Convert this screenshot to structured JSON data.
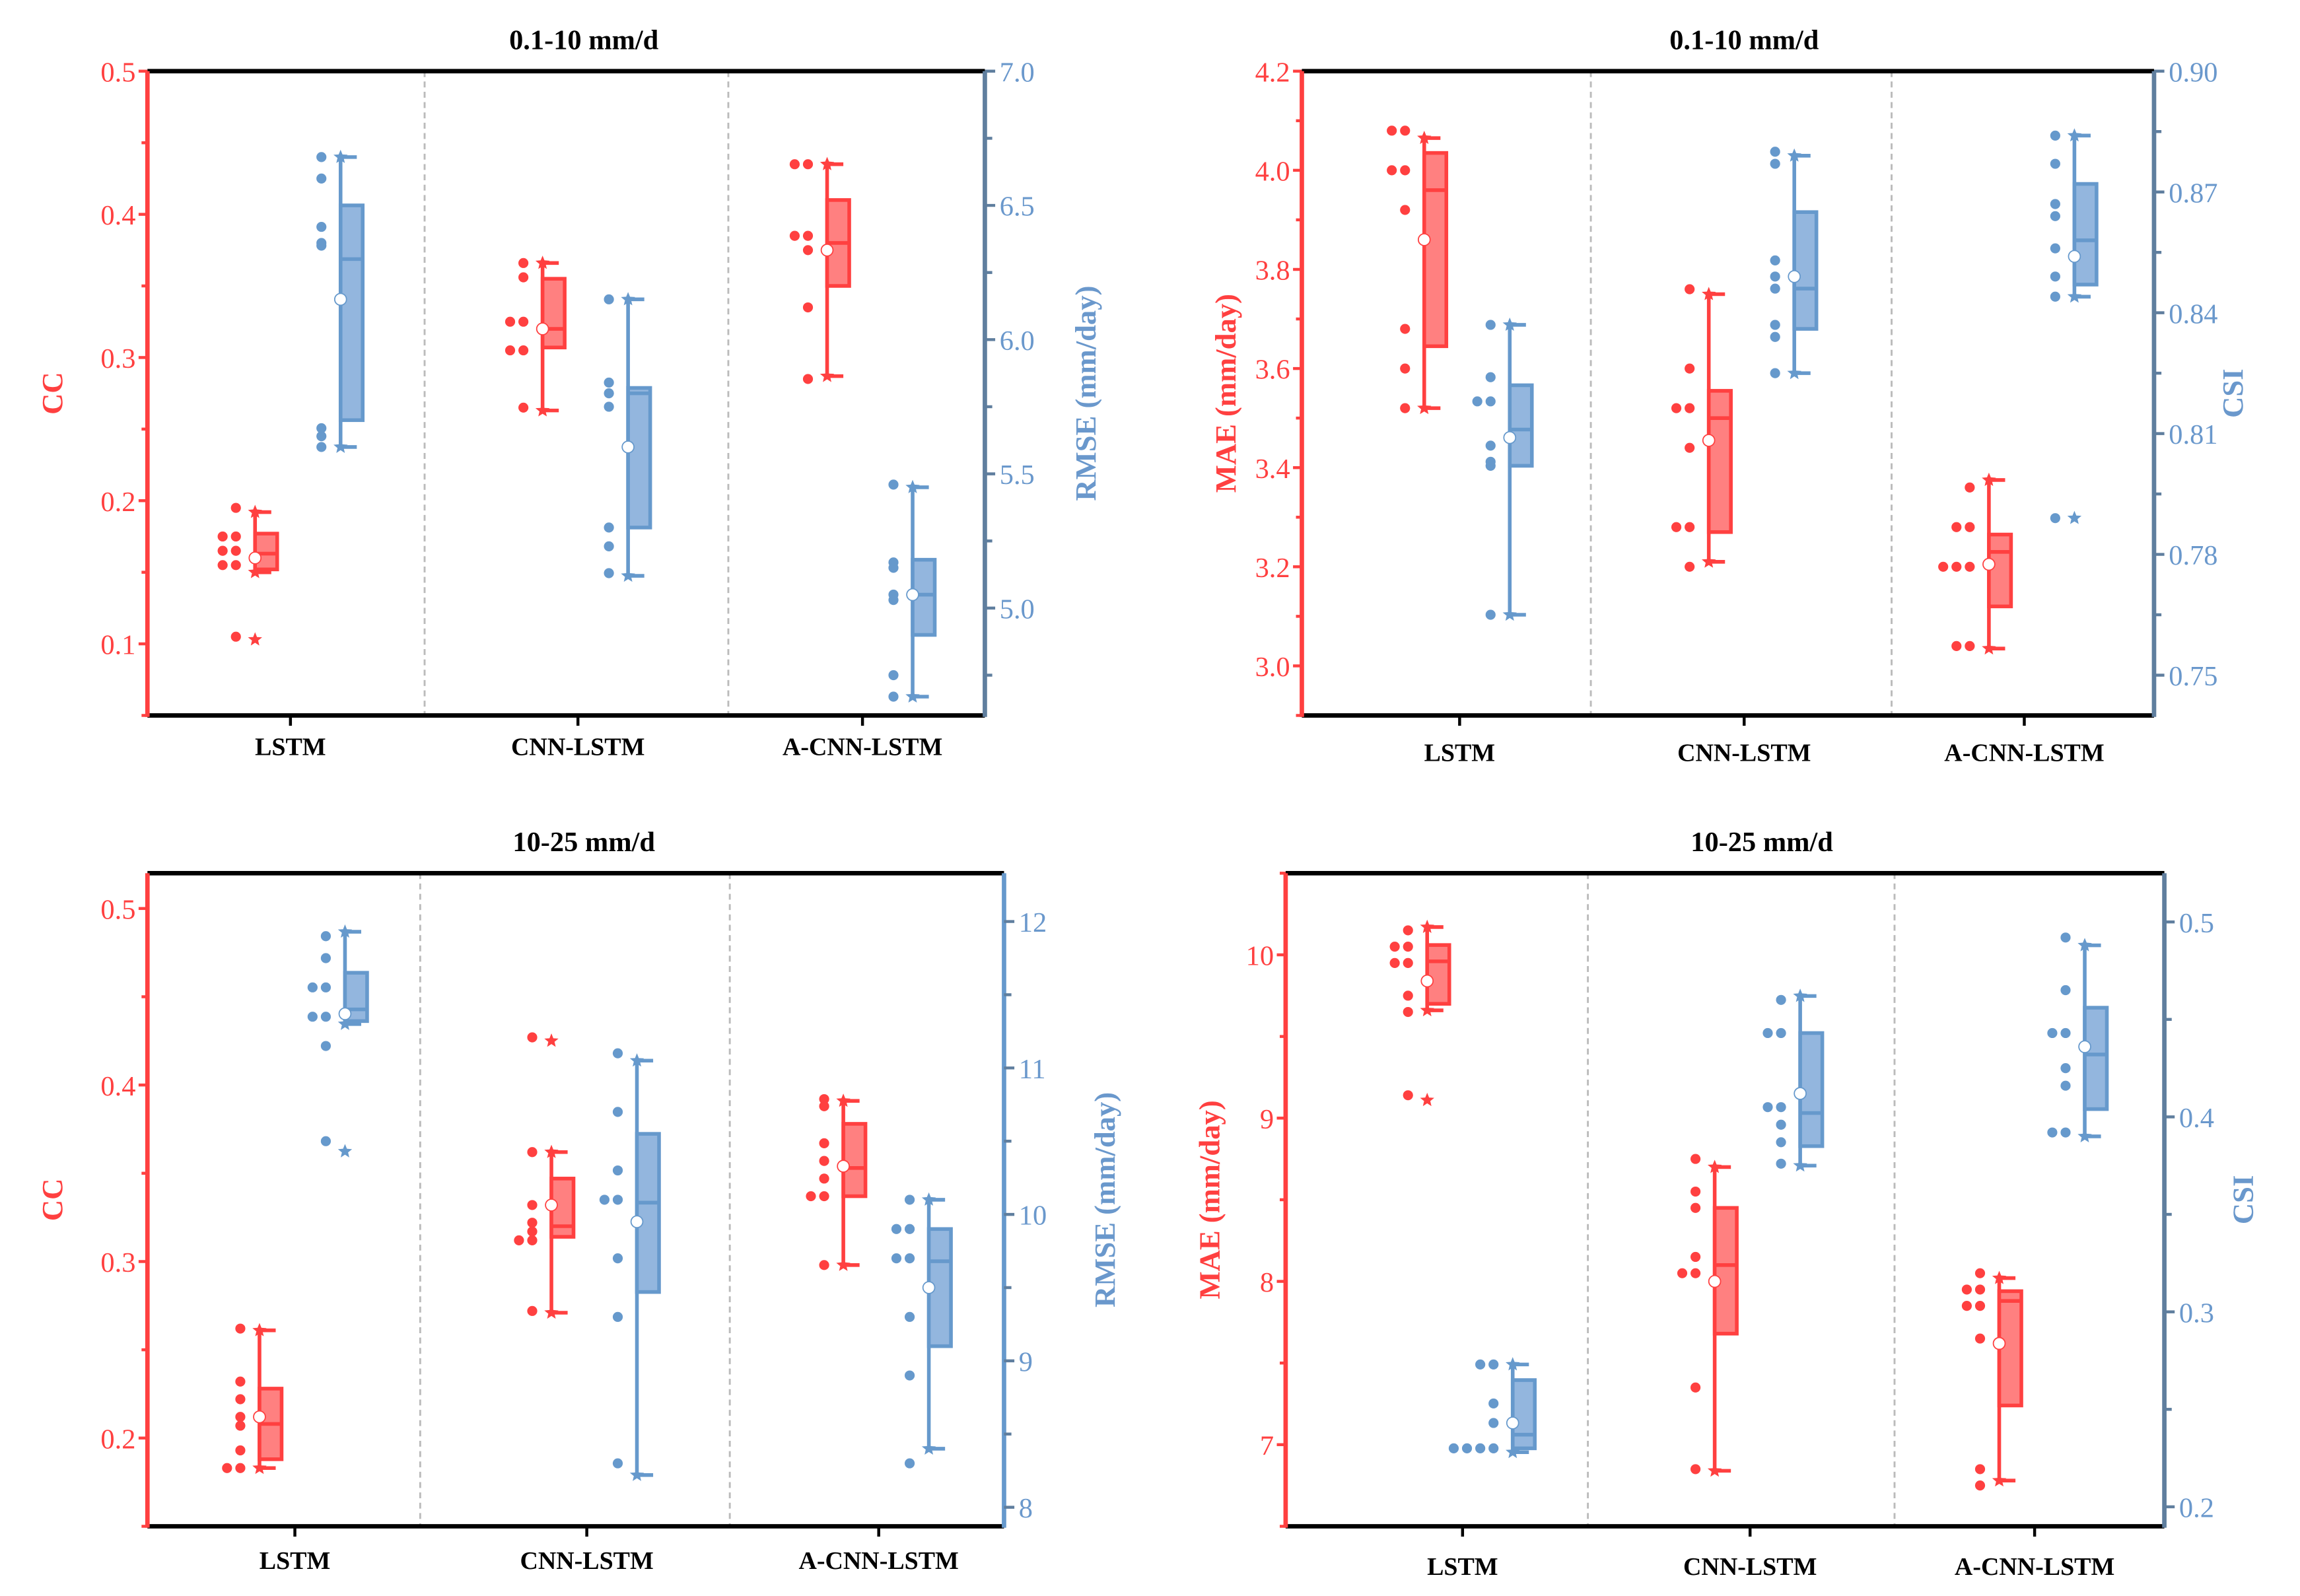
{
  "colors": {
    "left": "#FF4040",
    "left_fill": "#FF8080",
    "right": "#6699CC",
    "right_fill": "#93B6DE",
    "right_axis": "#5F7E9E",
    "divider": "#BBBBBB"
  },
  "chart_data": [
    {
      "type": "box",
      "title": "0.1-10 mm/d",
      "categories": [
        "LSTM",
        "CNN-LSTM",
        "A-CNN-LSTM"
      ],
      "left_axis": {
        "label": "CC",
        "range": [
          0.05,
          0.5
        ],
        "ticks": [
          {
            "v": 0.1,
            "label": "0.1"
          },
          {
            "v": 0.2,
            "label": "0.2"
          },
          {
            "v": 0.3,
            "label": "0.3"
          },
          {
            "v": 0.4,
            "label": "0.4"
          },
          {
            "v": 0.5,
            "label": "0.5"
          }
        ],
        "minor": [
          0.05,
          0.15,
          0.25,
          0.35,
          0.45
        ]
      },
      "right_axis": {
        "label": "RMSE (mm/day)",
        "range": [
          4.6,
          7.0
        ],
        "ticks": [
          {
            "v": 5.0,
            "label": "5.0"
          },
          {
            "v": 5.5,
            "label": "5.5"
          },
          {
            "v": 6.0,
            "label": "6.0"
          },
          {
            "v": 6.5,
            "label": "6.5"
          },
          {
            "v": 7.0,
            "label": "7.0"
          }
        ],
        "minor": [
          4.75,
          5.25,
          5.75,
          6.25,
          6.75
        ]
      },
      "left_series": [
        {
          "min": 0.15,
          "q1": 0.152,
          "median": 0.163,
          "q3": 0.177,
          "max": 0.192,
          "mean": 0.16,
          "points": [
            0.195,
            0.175,
            0.175,
            0.165,
            0.165,
            0.155,
            0.155,
            0.105
          ],
          "outliers": [
            0.103
          ]
        },
        {
          "min": 0.263,
          "q1": 0.307,
          "median": 0.32,
          "q3": 0.355,
          "max": 0.366,
          "mean": 0.32,
          "points": [
            0.366,
            0.356,
            0.325,
            0.325,
            0.305,
            0.305,
            0.265
          ],
          "outliers": []
        },
        {
          "min": 0.287,
          "q1": 0.35,
          "median": 0.38,
          "q3": 0.41,
          "max": 0.435,
          "mean": 0.375,
          "points": [
            0.435,
            0.435,
            0.385,
            0.385,
            0.375,
            0.335,
            0.285
          ],
          "outliers": []
        }
      ],
      "right_series": [
        {
          "min": 5.6,
          "q1": 5.7,
          "median": 6.3,
          "q3": 6.5,
          "max": 6.68,
          "mean": 6.15,
          "points": [
            6.68,
            6.6,
            6.42,
            6.35,
            6.36,
            5.67,
            5.64,
            5.6
          ],
          "outliers": []
        },
        {
          "min": 5.12,
          "q1": 5.3,
          "median": 5.8,
          "q3": 5.82,
          "max": 6.15,
          "mean": 5.6,
          "points": [
            6.15,
            5.84,
            5.8,
            5.75,
            5.3,
            5.23,
            5.13
          ],
          "outliers": []
        },
        {
          "min": 4.67,
          "q1": 4.9,
          "median": 5.05,
          "q3": 5.18,
          "max": 5.45,
          "mean": 5.05,
          "points": [
            5.46,
            5.17,
            5.15,
            5.05,
            5.03,
            4.75,
            4.67
          ],
          "outliers": []
        }
      ]
    },
    {
      "type": "box",
      "title": "0.1-10 mm/d",
      "categories": [
        "LSTM",
        "CNN-LSTM",
        "A-CNN-LSTM"
      ],
      "left_axis": {
        "label": "MAE (mm/day)",
        "range": [
          2.9,
          4.2
        ],
        "ticks": [
          {
            "v": 3.0,
            "label": "3.0"
          },
          {
            "v": 3.2,
            "label": "3.2"
          },
          {
            "v": 3.4,
            "label": "3.4"
          },
          {
            "v": 3.6,
            "label": "3.6"
          },
          {
            "v": 3.8,
            "label": "3.8"
          },
          {
            "v": 4.0,
            "label": "4.0"
          },
          {
            "v": 4.2,
            "label": "4.2"
          }
        ],
        "minor": [
          2.9,
          3.1,
          3.3,
          3.5,
          3.7,
          3.9,
          4.1
        ]
      },
      "right_axis": {
        "label": "CSI",
        "range": [
          0.74,
          0.9
        ],
        "ticks": [
          {
            "v": 0.75,
            "label": "0.75"
          },
          {
            "v": 0.78,
            "label": "0.78"
          },
          {
            "v": 0.81,
            "label": "0.81"
          },
          {
            "v": 0.84,
            "label": "0.84"
          },
          {
            "v": 0.87,
            "label": "0.87"
          },
          {
            "v": 0.9,
            "label": "0.90"
          }
        ],
        "minor": [
          0.765,
          0.795,
          0.825,
          0.855,
          0.885
        ]
      },
      "left_series": [
        {
          "min": 3.52,
          "q1": 3.645,
          "median": 3.96,
          "q3": 4.035,
          "max": 4.065,
          "mean": 3.86,
          "points": [
            4.08,
            4.08,
            4.0,
            4.0,
            3.92,
            3.68,
            3.6,
            3.52
          ],
          "outliers": []
        },
        {
          "min": 3.21,
          "q1": 3.27,
          "median": 3.5,
          "q3": 3.555,
          "max": 3.75,
          "mean": 3.455,
          "points": [
            3.76,
            3.6,
            3.52,
            3.52,
            3.44,
            3.28,
            3.28,
            3.2
          ],
          "outliers": []
        },
        {
          "min": 3.035,
          "q1": 3.12,
          "median": 3.23,
          "q3": 3.265,
          "max": 3.375,
          "mean": 3.205,
          "points": [
            3.36,
            3.28,
            3.28,
            3.2,
            3.2,
            3.2,
            3.04,
            3.04
          ],
          "outliers": []
        }
      ],
      "right_series": [
        {
          "min": 0.765,
          "q1": 0.802,
          "median": 0.811,
          "q3": 0.822,
          "max": 0.837,
          "mean": 0.809,
          "points": [
            0.837,
            0.824,
            0.818,
            0.818,
            0.807,
            0.803,
            0.802,
            0.765
          ],
          "outliers": []
        },
        {
          "min": 0.825,
          "q1": 0.836,
          "median": 0.846,
          "q3": 0.865,
          "max": 0.879,
          "mean": 0.849,
          "points": [
            0.88,
            0.877,
            0.853,
            0.849,
            0.846,
            0.837,
            0.834,
            0.825
          ],
          "outliers": []
        },
        {
          "min": 0.844,
          "q1": 0.847,
          "median": 0.858,
          "q3": 0.872,
          "max": 0.884,
          "mean": 0.854,
          "points": [
            0.884,
            0.877,
            0.867,
            0.864,
            0.856,
            0.849,
            0.844,
            0.789
          ],
          "outliers": [
            0.789
          ]
        }
      ]
    },
    {
      "type": "box",
      "title": "10-25 mm/d",
      "categories": [
        "LSTM",
        "CNN-LSTM",
        "A-CNN-LSTM"
      ],
      "left_axis": {
        "label": "CC",
        "range": [
          0.15,
          0.52
        ],
        "ticks": [
          {
            "v": 0.2,
            "label": "0.2"
          },
          {
            "v": 0.3,
            "label": "0.3"
          },
          {
            "v": 0.4,
            "label": "0.4"
          },
          {
            "v": 0.5,
            "label": "0.5"
          }
        ],
        "minor": [
          0.15,
          0.25,
          0.35,
          0.45
        ]
      },
      "right_axis": {
        "label": "RMSE (mm/day)",
        "range": [
          7.87,
          12.33
        ],
        "ticks": [
          {
            "v": 8,
            "label": "8"
          },
          {
            "v": 9,
            "label": "9"
          },
          {
            "v": 10,
            "label": "10"
          },
          {
            "v": 11,
            "label": "11"
          },
          {
            "v": 12,
            "label": "12"
          }
        ],
        "minor": [
          8.5,
          9.5,
          10.5,
          11.5
        ]
      },
      "left_series": [
        {
          "min": 0.183,
          "q1": 0.188,
          "median": 0.208,
          "q3": 0.228,
          "max": 0.261,
          "mean": 0.212,
          "points": [
            0.262,
            0.232,
            0.222,
            0.212,
            0.207,
            0.193,
            0.183,
            0.183
          ],
          "outliers": []
        },
        {
          "min": 0.271,
          "q1": 0.314,
          "median": 0.32,
          "q3": 0.347,
          "max": 0.362,
          "mean": 0.332,
          "points": [
            0.427,
            0.362,
            0.332,
            0.322,
            0.317,
            0.312,
            0.312,
            0.272
          ],
          "outliers": [
            0.425
          ]
        },
        {
          "min": 0.298,
          "q1": 0.337,
          "median": 0.353,
          "q3": 0.378,
          "max": 0.391,
          "mean": 0.354,
          "points": [
            0.392,
            0.388,
            0.367,
            0.357,
            0.347,
            0.337,
            0.337,
            0.298
          ],
          "outliers": []
        }
      ],
      "right_series": [
        {
          "min": 11.3,
          "q1": 11.32,
          "median": 11.4,
          "q3": 11.65,
          "max": 11.93,
          "mean": 11.37,
          "points": [
            11.9,
            11.75,
            11.55,
            11.55,
            11.35,
            11.35,
            11.15,
            10.5
          ],
          "outliers": [
            10.43
          ]
        },
        {
          "min": 8.22,
          "q1": 9.47,
          "median": 10.08,
          "q3": 10.55,
          "max": 11.05,
          "mean": 9.95,
          "points": [
            11.1,
            10.7,
            10.3,
            10.1,
            10.1,
            9.7,
            9.3,
            8.3
          ],
          "outliers": []
        },
        {
          "min": 8.4,
          "q1": 9.1,
          "median": 9.68,
          "q3": 9.9,
          "max": 10.1,
          "mean": 9.5,
          "points": [
            10.1,
            9.9,
            9.9,
            9.7,
            9.7,
            9.3,
            8.9,
            8.3
          ],
          "outliers": []
        }
      ]
    },
    {
      "type": "box",
      "title": "10-25 mm/d",
      "categories": [
        "LSTM",
        "CNN-LSTM",
        "A-CNN-LSTM"
      ],
      "left_axis": {
        "label": "MAE (mm/day)",
        "range": [
          6.5,
          10.5
        ],
        "ticks": [
          {
            "v": 7,
            "label": "7"
          },
          {
            "v": 8,
            "label": "8"
          },
          {
            "v": 9,
            "label": "9"
          },
          {
            "v": 10,
            "label": "10"
          }
        ],
        "minor": [
          6.5,
          7.5,
          8.5,
          9.5,
          10.5
        ]
      },
      "right_axis": {
        "label": "CSI",
        "range": [
          0.19,
          0.525
        ],
        "ticks": [
          {
            "v": 0.2,
            "label": "0.2"
          },
          {
            "v": 0.3,
            "label": "0.3"
          },
          {
            "v": 0.4,
            "label": "0.4"
          },
          {
            "v": 0.5,
            "label": "0.5"
          }
        ],
        "minor": [
          0.25,
          0.35,
          0.45
        ]
      },
      "left_series": [
        {
          "min": 9.66,
          "q1": 9.7,
          "median": 9.96,
          "q3": 10.06,
          "max": 10.17,
          "mean": 9.84,
          "points": [
            10.15,
            10.05,
            10.05,
            9.95,
            9.95,
            9.75,
            9.65,
            9.14
          ],
          "outliers": [
            9.11
          ]
        },
        {
          "min": 6.84,
          "q1": 7.68,
          "median": 8.1,
          "q3": 8.45,
          "max": 8.7,
          "mean": 8.0,
          "points": [
            8.75,
            8.55,
            8.45,
            8.15,
            8.05,
            8.05,
            7.35,
            6.85
          ],
          "outliers": []
        },
        {
          "min": 6.78,
          "q1": 7.24,
          "median": 7.88,
          "q3": 7.94,
          "max": 8.02,
          "mean": 7.62,
          "points": [
            8.05,
            7.95,
            7.95,
            7.85,
            7.85,
            7.65,
            6.85,
            6.75
          ],
          "outliers": []
        }
      ],
      "right_series": [
        {
          "min": 0.228,
          "q1": 0.23,
          "median": 0.237,
          "q3": 0.265,
          "max": 0.273,
          "mean": 0.243,
          "points": [
            0.273,
            0.273,
            0.253,
            0.243,
            0.23,
            0.23,
            0.23,
            0.23
          ],
          "outliers": []
        },
        {
          "min": 0.375,
          "q1": 0.385,
          "median": 0.402,
          "q3": 0.443,
          "max": 0.462,
          "mean": 0.412,
          "points": [
            0.46,
            0.443,
            0.443,
            0.405,
            0.405,
            0.396,
            0.387,
            0.376
          ],
          "outliers": []
        },
        {
          "min": 0.39,
          "q1": 0.404,
          "median": 0.432,
          "q3": 0.456,
          "max": 0.488,
          "mean": 0.436,
          "points": [
            0.492,
            0.465,
            0.443,
            0.443,
            0.425,
            0.416,
            0.392,
            0.392
          ],
          "outliers": []
        }
      ]
    }
  ]
}
